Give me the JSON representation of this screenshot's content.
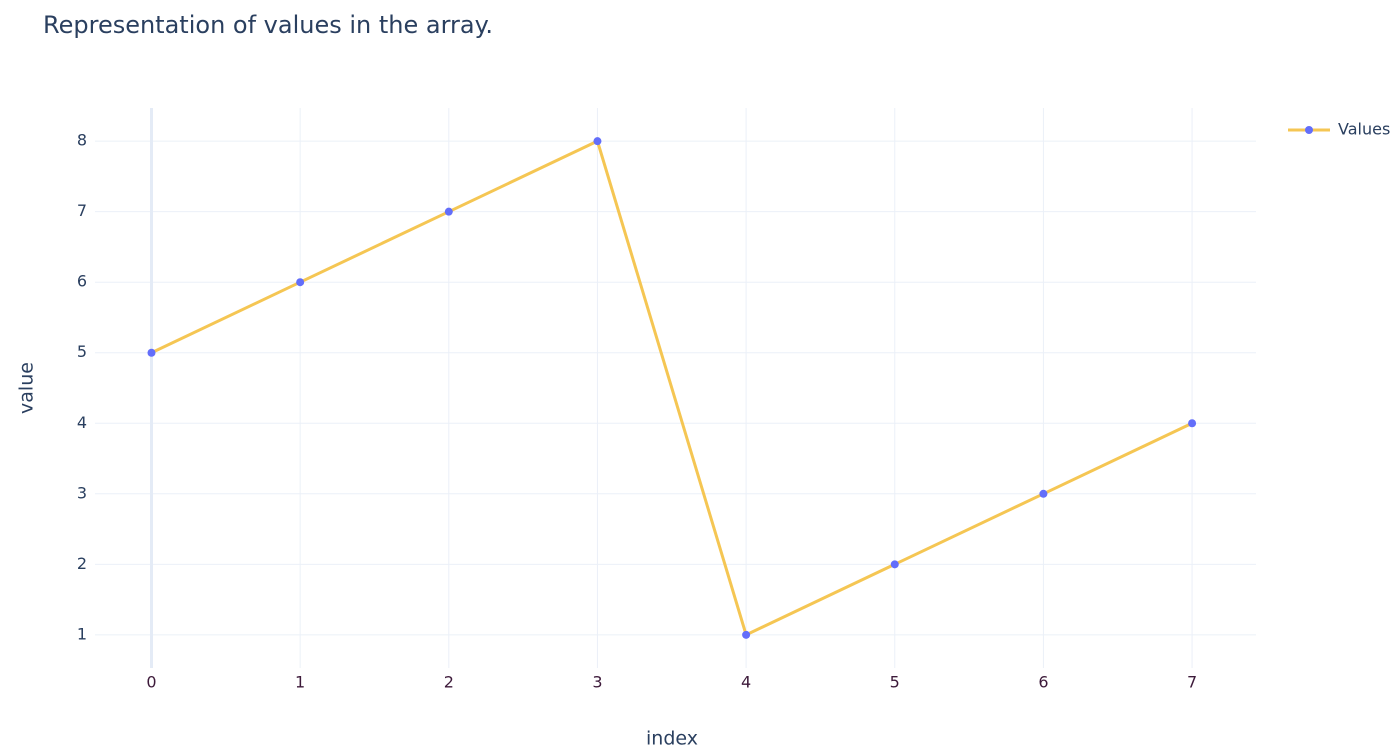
{
  "chart_data": {
    "type": "line",
    "title": "Representation of values in the array.",
    "x_label": "index",
    "y_label": "value",
    "x": [
      0,
      1,
      2,
      3,
      4,
      5,
      6,
      7
    ],
    "series": [
      {
        "name": "Values",
        "color": "#f5c653",
        "marker_color": "#636efa",
        "values": [
          5,
          6,
          7,
          8,
          1,
          2,
          3,
          4
        ]
      }
    ],
    "xlim": [
      -0.38,
      7.43
    ],
    "ylim": [
      0.53,
      8.47
    ],
    "xticks": [
      0,
      1,
      2,
      3,
      4,
      5,
      6,
      7
    ],
    "yticks": [
      1,
      2,
      3,
      4,
      5,
      6,
      7,
      8
    ],
    "grid": true,
    "legend": "top-right"
  }
}
